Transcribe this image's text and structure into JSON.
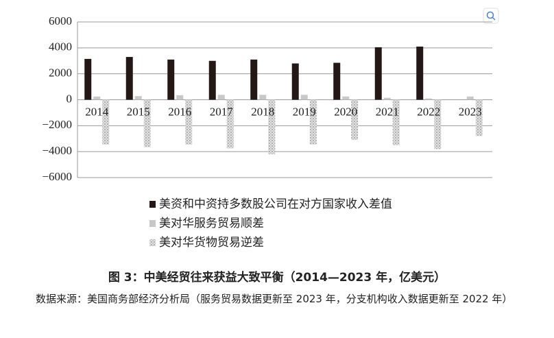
{
  "chart_data": {
    "type": "bar",
    "title": "图 3：中美经贸往来获益大致平衡（2014—2023 年，亿美元）",
    "source": "数据来源：美国商务部经济分析局（服务贸易数据更新至 2023 年，分支机构收入数据更新至 2022 年）",
    "categories": [
      "2014",
      "2015",
      "2016",
      "2017",
      "2018",
      "2019",
      "2020",
      "2021",
      "2022",
      "2023"
    ],
    "series": [
      {
        "name": "美资和中资持多数股公司在对方国家收入差值",
        "color": "#231815",
        "values": [
          3150,
          3300,
          3100,
          3000,
          3100,
          2800,
          2850,
          4050,
          4100,
          null
        ]
      },
      {
        "name": "美对华服务贸易顺差",
        "color": "#c8c8c8",
        "values": [
          250,
          280,
          350,
          380,
          380,
          380,
          250,
          150,
          100,
          250
        ]
      },
      {
        "name": "美对华货物贸易逆差",
        "color": "#b0b0b0",
        "pattern": "dots",
        "values": [
          -3450,
          -3650,
          -3450,
          -3750,
          -4200,
          -3450,
          -3100,
          -3500,
          -3800,
          -2800
        ]
      }
    ],
    "ylim": [
      -6000,
      6000
    ],
    "yticks": [
      {
        "value": -6000,
        "label": "−6000"
      },
      {
        "value": -4000,
        "label": "−4000"
      },
      {
        "value": -2000,
        "label": "−2000"
      },
      0,
      2000,
      4000,
      6000
    ],
    "grid": true
  }
}
